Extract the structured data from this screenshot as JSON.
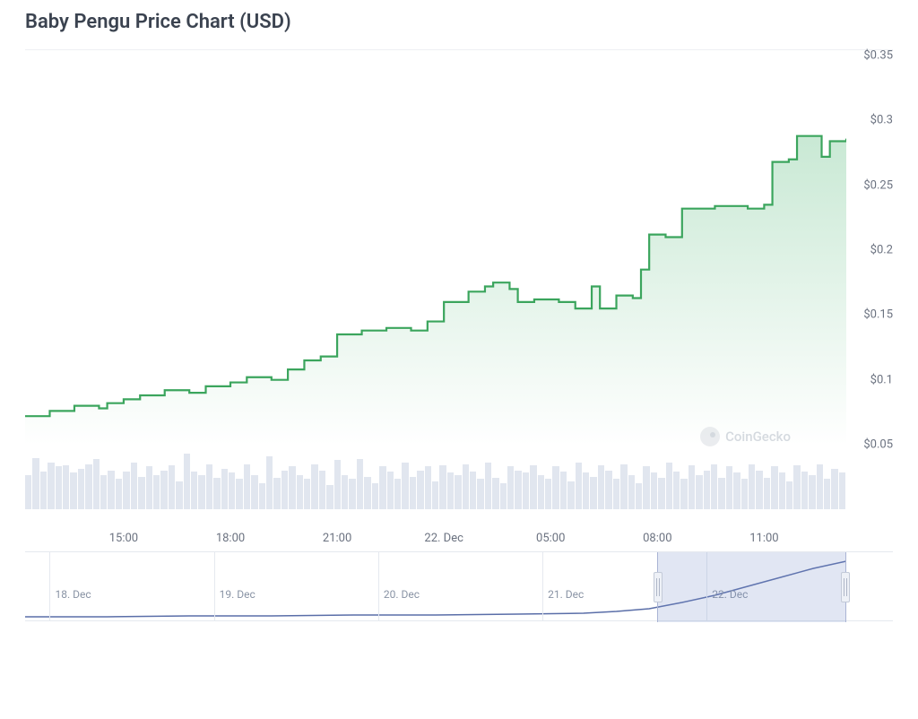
{
  "title": "Baby Pengu Price Chart (USD)",
  "watermark": "CoinGecko",
  "main_chart": {
    "type": "area",
    "line_color": "#3ba55d",
    "line_width": 2.2,
    "fill_top_color": "rgba(75,181,113,0.30)",
    "fill_bottom_color": "rgba(75,181,113,0.0)",
    "background_color": "#ffffff",
    "y": {
      "min": 0.05,
      "max": 0.35,
      "ticks": [
        0.05,
        0.1,
        0.15,
        0.2,
        0.25,
        0.3,
        0.35
      ],
      "labels": [
        "$0.05",
        "$0.1",
        "$0.15",
        "$0.2",
        "$0.25",
        "$0.3",
        "$0.35"
      ],
      "label_color": "#6b7280",
      "label_fontsize": 13
    },
    "x": {
      "min": 0,
      "max": 100,
      "ticks": [
        12,
        25,
        38,
        51,
        64,
        77,
        90,
        100
      ],
      "labels_at": [
        12,
        25,
        38,
        51,
        64,
        77,
        90
      ],
      "labels": [
        "15:00",
        "18:00",
        "21:00",
        "22. Dec",
        "05:00",
        "08:00",
        "11:00"
      ],
      "label_color": "#6b7280",
      "label_fontsize": 13
    },
    "series": [
      {
        "x": 0,
        "y": 0.072
      },
      {
        "x": 2,
        "y": 0.072
      },
      {
        "x": 3,
        "y": 0.076
      },
      {
        "x": 5,
        "y": 0.076
      },
      {
        "x": 6,
        "y": 0.08
      },
      {
        "x": 8,
        "y": 0.08
      },
      {
        "x": 9,
        "y": 0.078
      },
      {
        "x": 10,
        "y": 0.082
      },
      {
        "x": 12,
        "y": 0.085
      },
      {
        "x": 13,
        "y": 0.085
      },
      {
        "x": 14,
        "y": 0.088
      },
      {
        "x": 16,
        "y": 0.088
      },
      {
        "x": 17,
        "y": 0.092
      },
      {
        "x": 19,
        "y": 0.092
      },
      {
        "x": 20,
        "y": 0.09
      },
      {
        "x": 22,
        "y": 0.095
      },
      {
        "x": 23,
        "y": 0.095
      },
      {
        "x": 25,
        "y": 0.098
      },
      {
        "x": 26,
        "y": 0.098
      },
      {
        "x": 27,
        "y": 0.102
      },
      {
        "x": 29,
        "y": 0.102
      },
      {
        "x": 30,
        "y": 0.1
      },
      {
        "x": 32,
        "y": 0.108
      },
      {
        "x": 33,
        "y": 0.108
      },
      {
        "x": 34,
        "y": 0.115
      },
      {
        "x": 36,
        "y": 0.118
      },
      {
        "x": 37,
        "y": 0.118
      },
      {
        "x": 38,
        "y": 0.135
      },
      {
        "x": 40,
        "y": 0.135
      },
      {
        "x": 41,
        "y": 0.138
      },
      {
        "x": 43,
        "y": 0.138
      },
      {
        "x": 44,
        "y": 0.14
      },
      {
        "x": 46,
        "y": 0.14
      },
      {
        "x": 47,
        "y": 0.138
      },
      {
        "x": 49,
        "y": 0.145
      },
      {
        "x": 50,
        "y": 0.145
      },
      {
        "x": 51,
        "y": 0.16
      },
      {
        "x": 53,
        "y": 0.16
      },
      {
        "x": 54,
        "y": 0.168
      },
      {
        "x": 56,
        "y": 0.172
      },
      {
        "x": 57,
        "y": 0.175
      },
      {
        "x": 58,
        "y": 0.175
      },
      {
        "x": 59,
        "y": 0.17
      },
      {
        "x": 60,
        "y": 0.16
      },
      {
        "x": 62,
        "y": 0.162
      },
      {
        "x": 63,
        "y": 0.162
      },
      {
        "x": 65,
        "y": 0.16
      },
      {
        "x": 66,
        "y": 0.16
      },
      {
        "x": 67,
        "y": 0.155
      },
      {
        "x": 69,
        "y": 0.172
      },
      {
        "x": 70,
        "y": 0.155
      },
      {
        "x": 72,
        "y": 0.165
      },
      {
        "x": 73,
        "y": 0.165
      },
      {
        "x": 74,
        "y": 0.163
      },
      {
        "x": 75,
        "y": 0.185
      },
      {
        "x": 76,
        "y": 0.212
      },
      {
        "x": 77,
        "y": 0.212
      },
      {
        "x": 78,
        "y": 0.21
      },
      {
        "x": 80,
        "y": 0.232
      },
      {
        "x": 82,
        "y": 0.232
      },
      {
        "x": 84,
        "y": 0.234
      },
      {
        "x": 86,
        "y": 0.234
      },
      {
        "x": 88,
        "y": 0.232
      },
      {
        "x": 90,
        "y": 0.235
      },
      {
        "x": 91,
        "y": 0.268
      },
      {
        "x": 92,
        "y": 0.268
      },
      {
        "x": 93,
        "y": 0.27
      },
      {
        "x": 94,
        "y": 0.288
      },
      {
        "x": 96,
        "y": 0.288
      },
      {
        "x": 97,
        "y": 0.272
      },
      {
        "x": 98,
        "y": 0.284
      },
      {
        "x": 100,
        "y": 0.286
      }
    ]
  },
  "volume": {
    "bar_color": "#e1e6ef",
    "max": 100,
    "values": [
      55,
      82,
      60,
      75,
      68,
      70,
      58,
      65,
      72,
      80,
      55,
      62,
      48,
      60,
      75,
      52,
      68,
      55,
      62,
      70,
      45,
      88,
      60,
      55,
      72,
      50,
      65,
      58,
      48,
      72,
      55,
      42,
      85,
      50,
      62,
      68,
      55,
      48,
      72,
      62,
      38,
      78,
      55,
      48,
      80,
      52,
      42,
      68,
      60,
      48,
      75,
      52,
      62,
      68,
      45,
      70,
      58,
      55,
      72,
      60,
      48,
      75,
      50,
      42,
      68,
      62,
      58,
      70,
      55,
      48,
      68,
      60,
      45,
      75,
      58,
      52,
      70,
      62,
      48,
      72,
      55,
      42,
      68,
      58,
      50,
      75,
      60,
      48,
      70,
      55,
      62,
      72,
      50,
      68,
      58,
      48,
      72,
      62,
      50,
      68,
      58,
      45,
      70,
      60,
      55,
      72,
      48,
      65,
      58
    ]
  },
  "navigator": {
    "type": "line",
    "line_color": "#5a6ea8",
    "line_width": 1.5,
    "window_color": "rgba(120,140,200,0.22)",
    "handle_bg": "#eef1f7",
    "handle_border": "#c3cad8",
    "grid_color": "#e5e9ef",
    "window_start_pct": 77,
    "window_end_pct": 100,
    "x": {
      "labels": [
        "18. Dec",
        "19. Dec",
        "20. Dec",
        "21. Dec",
        "22. Dec"
      ],
      "positions_pct": [
        3,
        23,
        43,
        63,
        83
      ]
    },
    "series": [
      {
        "x": 0,
        "y": 72
      },
      {
        "x": 10,
        "y": 72
      },
      {
        "x": 20,
        "y": 71
      },
      {
        "x": 30,
        "y": 71
      },
      {
        "x": 40,
        "y": 70
      },
      {
        "x": 50,
        "y": 70
      },
      {
        "x": 60,
        "y": 69
      },
      {
        "x": 68,
        "y": 68
      },
      {
        "x": 72,
        "y": 66
      },
      {
        "x": 76,
        "y": 63
      },
      {
        "x": 80,
        "y": 56
      },
      {
        "x": 84,
        "y": 48
      },
      {
        "x": 88,
        "y": 38
      },
      {
        "x": 92,
        "y": 28
      },
      {
        "x": 96,
        "y": 18
      },
      {
        "x": 100,
        "y": 10
      }
    ]
  }
}
